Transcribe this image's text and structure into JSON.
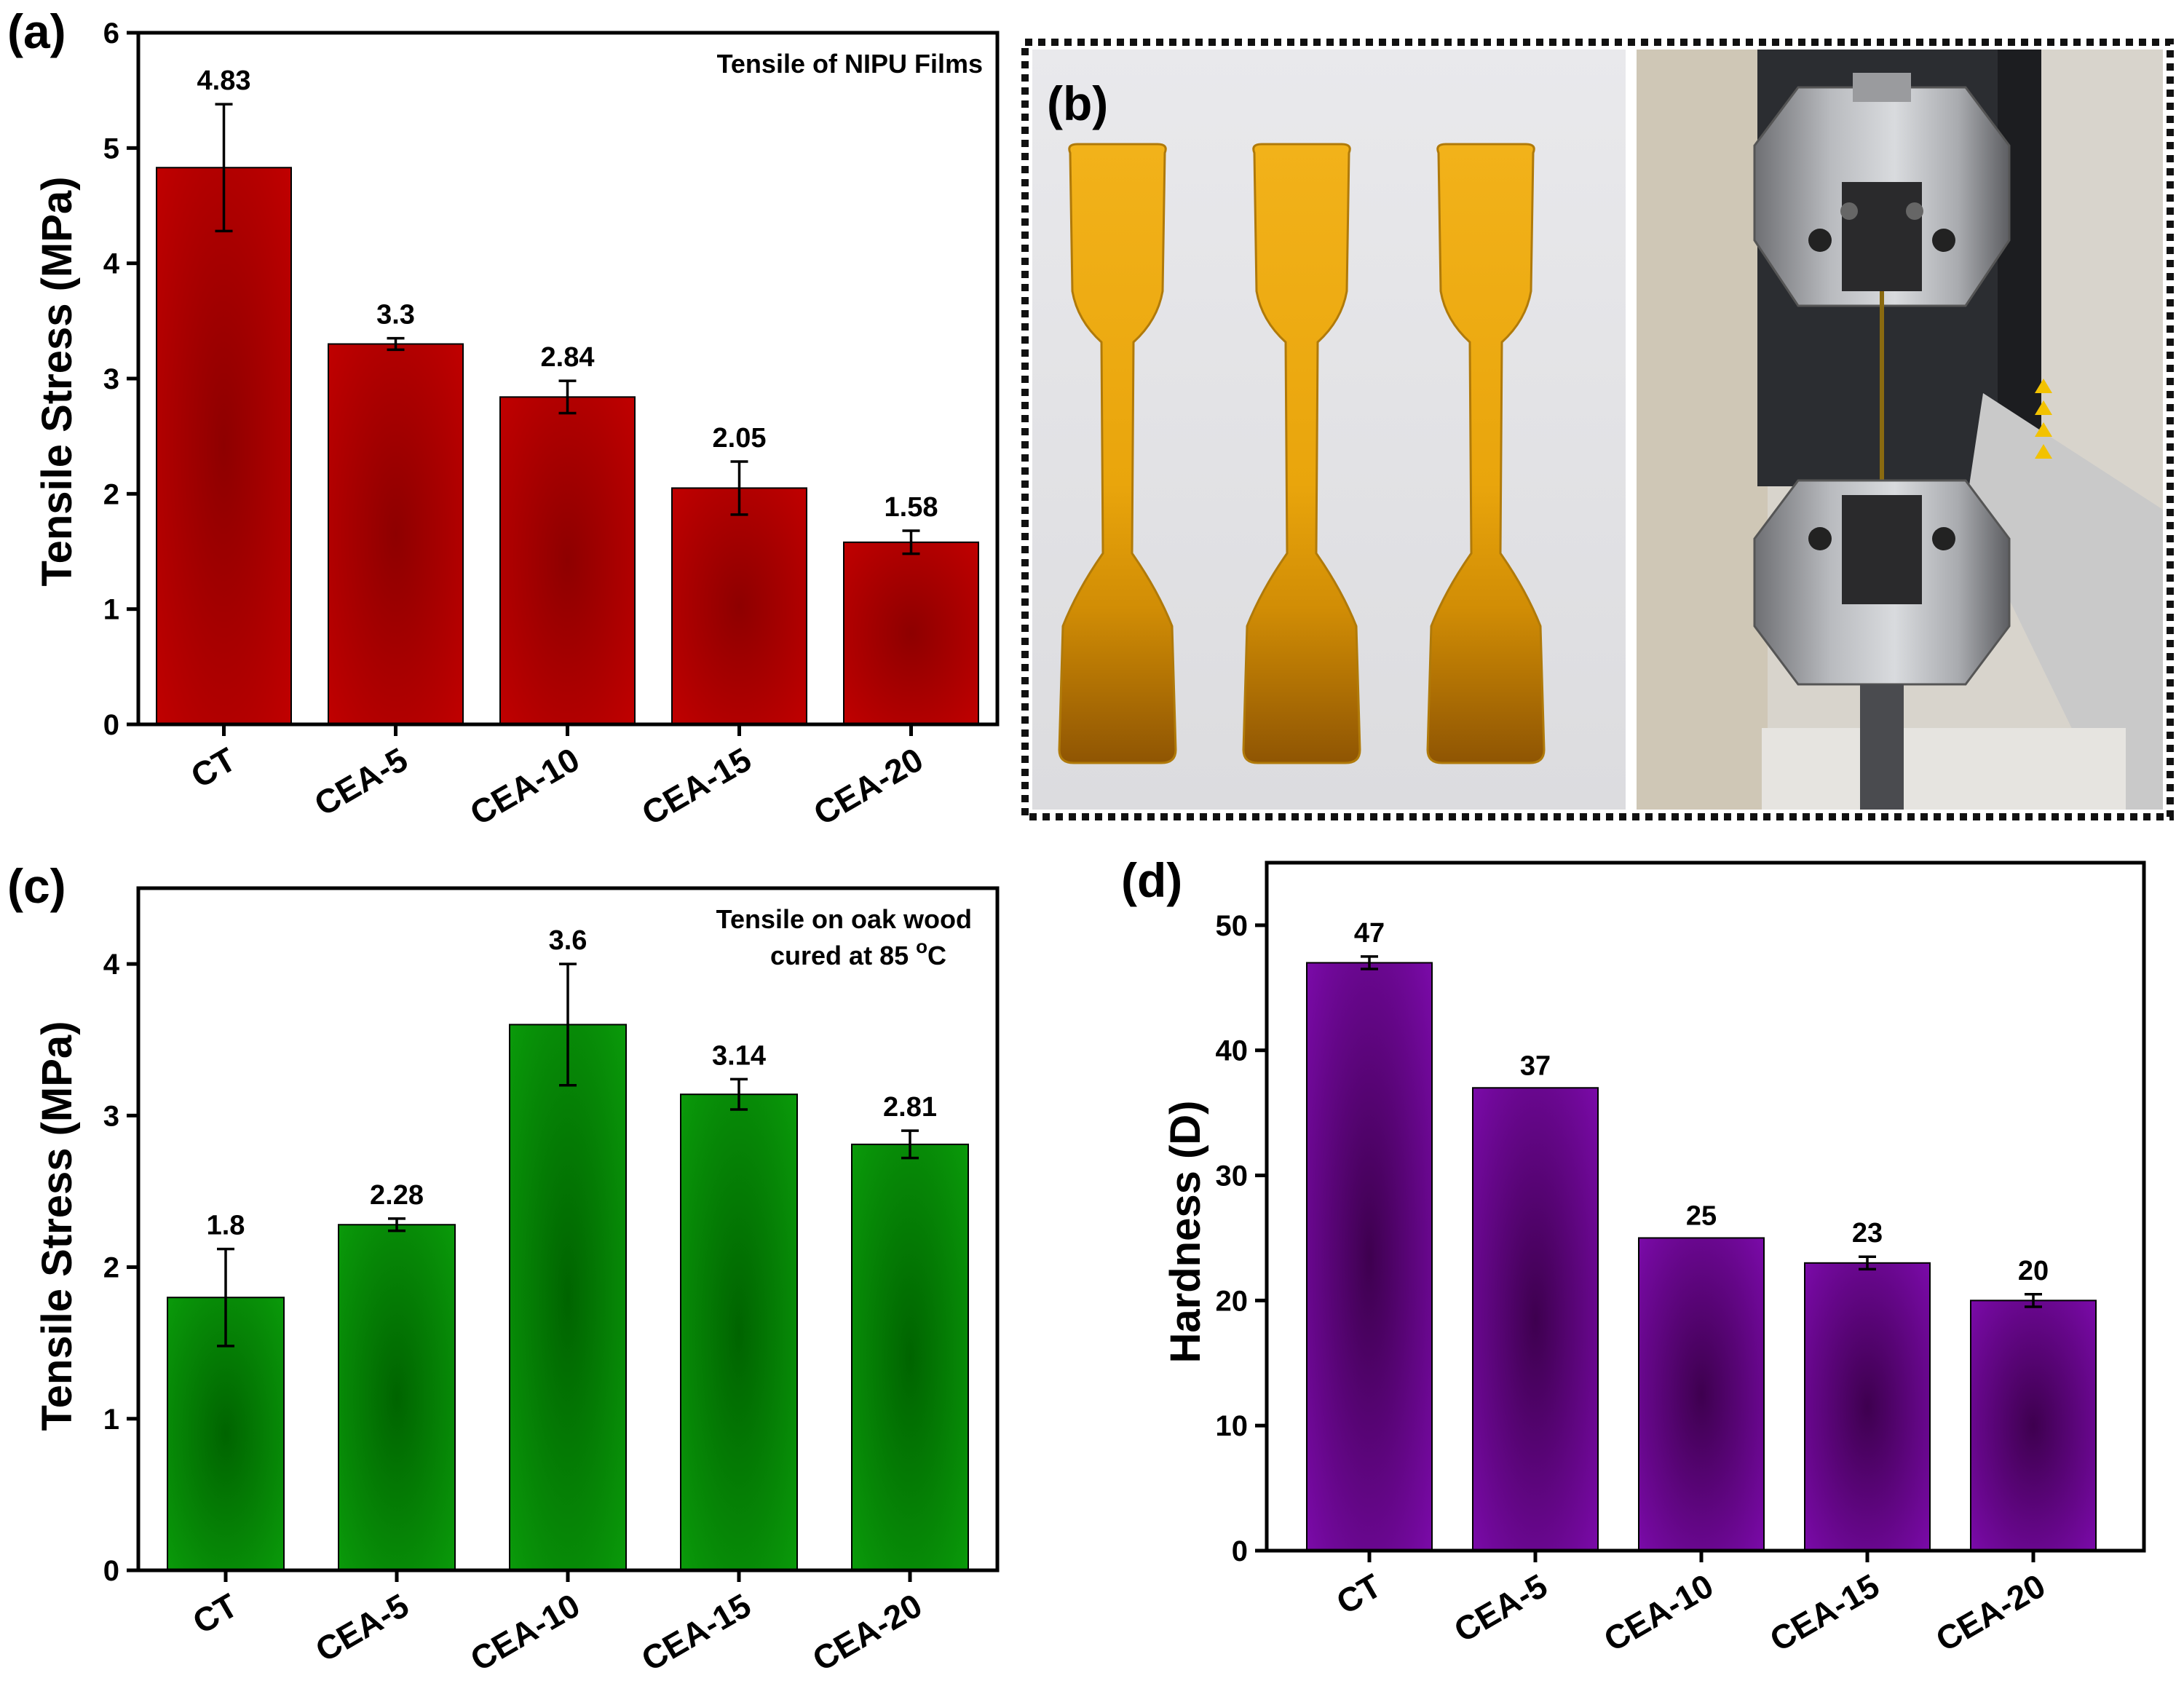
{
  "colors": {
    "red_bar_edge": "#c00000",
    "red_bar_core": "#8e0000",
    "green_bar_edge": "#0a9a0a",
    "green_bar_core": "#006400",
    "purple_bar_edge": "#7a0aa8",
    "purple_bar_core": "#3e004f"
  },
  "panel_b": {
    "letter": "(b)",
    "left_photo": "three amber dog-bone NIPU film specimens on white background",
    "right_photo": "tensile testing machine grips holding specimen"
  },
  "chart_data": [
    {
      "panel": "(a)",
      "type": "bar",
      "title": "Tensile of NIPU Films",
      "annotation": [
        "Tensile of NIPU Films"
      ],
      "xlabel": "",
      "ylabel": "Tensile Stress (MPa)",
      "categories": [
        "CT",
        "CEA-5",
        "CEA-10",
        "CEA-15",
        "CEA-20"
      ],
      "values": [
        4.83,
        3.3,
        2.84,
        2.05,
        1.58
      ],
      "value_labels": [
        "4.83",
        "3.3",
        "2.84",
        "2.05",
        "1.58"
      ],
      "errors": [
        0.55,
        0.05,
        0.14,
        0.23,
        0.1
      ],
      "ylim": [
        0,
        6
      ],
      "yticks": [
        0,
        1,
        2,
        3,
        4,
        5,
        6
      ],
      "grid": false,
      "color": "red"
    },
    {
      "panel": "(c)",
      "type": "bar",
      "title": "Tensile on oak wood cured at 85 °C",
      "annotation": [
        "Tensile on oak wood",
        "cured at 85 ",
        "o",
        "C"
      ],
      "xlabel": "",
      "ylabel": "Tensile Stress (MPa)",
      "categories": [
        "CT",
        "CEA-5",
        "CEA-10",
        "CEA-15",
        "CEA-20"
      ],
      "values": [
        1.8,
        2.28,
        3.6,
        3.14,
        2.81
      ],
      "value_labels": [
        "1.8",
        "2.28",
        "3.6",
        "3.14",
        "2.81"
      ],
      "errors": [
        0.32,
        0.04,
        0.4,
        0.1,
        0.09
      ],
      "ylim": [
        0,
        4.5
      ],
      "yticks": [
        0,
        1,
        2,
        3,
        4
      ],
      "grid": false,
      "color": "green"
    },
    {
      "panel": "(d)",
      "type": "bar",
      "title": "",
      "annotation": [],
      "xlabel": "",
      "ylabel": "Hardness (D)",
      "categories": [
        "CT",
        "CEA-5",
        "CEA-10",
        "CEA-15",
        "CEA-20"
      ],
      "values": [
        47,
        37,
        25,
        23,
        20
      ],
      "value_labels": [
        "47",
        "37",
        "25",
        "23",
        "20"
      ],
      "errors": [
        0.5,
        0,
        0,
        0.5,
        0.5
      ],
      "ylim": [
        0,
        55
      ],
      "yticks": [
        0,
        10,
        20,
        30,
        40,
        50
      ],
      "grid": false,
      "color": "purple"
    }
  ]
}
